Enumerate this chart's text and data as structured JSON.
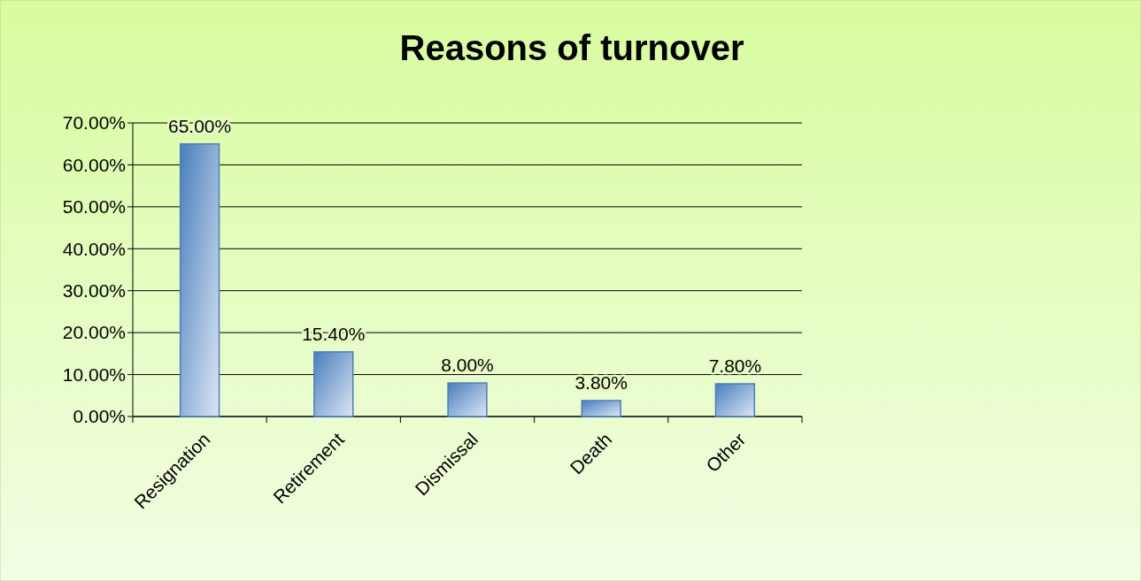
{
  "chart_data": {
    "type": "bar",
    "title": "Reasons of turnover",
    "categories": [
      "Resignation",
      "Retirement",
      "Dismissal",
      "Death",
      "Other"
    ],
    "values": [
      65,
      15.4,
      8,
      3.8,
      7.8
    ],
    "value_labels": [
      "65.00%",
      "15.40%",
      "8.00%",
      "3.80%",
      "7.80%"
    ],
    "color": "#4a7ebb",
    "ylim": [
      0,
      70
    ],
    "yticks": [
      {
        "value": 0,
        "label": "0.00%"
      },
      {
        "value": 10,
        "label": "10.00%"
      },
      {
        "value": 20,
        "label": "20.00%"
      },
      {
        "value": 30,
        "label": "30.00%"
      },
      {
        "value": 40,
        "label": "40.00%"
      },
      {
        "value": 50,
        "label": "50.00%"
      },
      {
        "value": 60,
        "label": "60.00%"
      },
      {
        "value": 70,
        "label": "70.00%"
      }
    ],
    "grid": "y",
    "legend": false
  }
}
